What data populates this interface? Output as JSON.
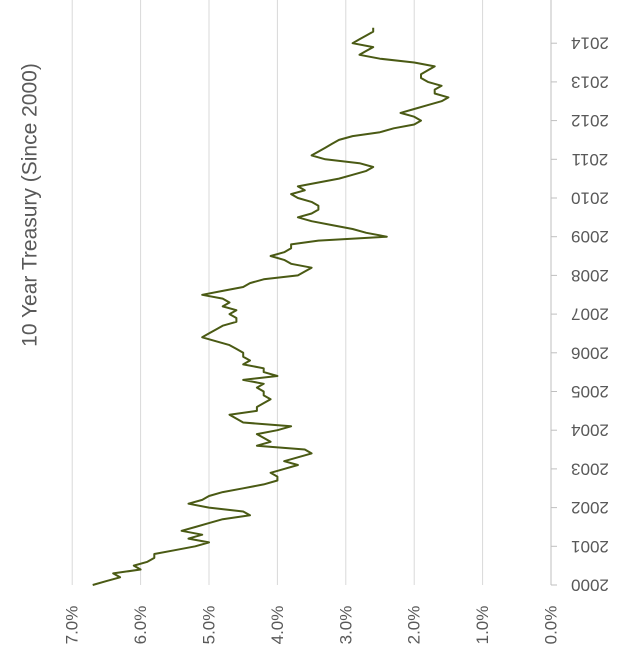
{
  "chart_data": {
    "type": "line",
    "orientation": "rotated-90-clockwise",
    "title": "10 Year Treasury (Since 2000)",
    "xlabel": "",
    "ylabel": "",
    "x_ticks": [
      "2000",
      "2001",
      "2002",
      "2003",
      "2004",
      "2005",
      "2006",
      "2007",
      "2008",
      "2009",
      "2010",
      "2011",
      "2012",
      "2013",
      "2014"
    ],
    "y_ticks": [
      "0.0%",
      "1.0%",
      "2.0%",
      "3.0%",
      "4.0%",
      "5.0%",
      "6.0%",
      "7.0%"
    ],
    "ylim": [
      0,
      7
    ],
    "xlim": [
      2000,
      2014.4
    ],
    "grid": true,
    "legend": "none",
    "series": [
      {
        "color": "#4a5a14",
        "x": [
          2000.0,
          2000.1,
          2000.2,
          2000.3,
          2000.4,
          2000.5,
          2000.6,
          2000.7,
          2000.8,
          2000.9,
          2001.0,
          2001.1,
          2001.2,
          2001.3,
          2001.4,
          2001.5,
          2001.6,
          2001.7,
          2001.8,
          2001.9,
          2002.0,
          2002.1,
          2002.2,
          2002.3,
          2002.4,
          2002.5,
          2002.6,
          2002.7,
          2002.8,
          2002.9,
          2003.0,
          2003.1,
          2003.2,
          2003.3,
          2003.4,
          2003.5,
          2003.6,
          2003.7,
          2003.8,
          2003.9,
          2004.0,
          2004.1,
          2004.2,
          2004.3,
          2004.4,
          2004.5,
          2004.6,
          2004.7,
          2004.8,
          2004.9,
          2005.0,
          2005.1,
          2005.2,
          2005.3,
          2005.4,
          2005.5,
          2005.6,
          2005.7,
          2005.8,
          2005.9,
          2006.0,
          2006.1,
          2006.2,
          2006.3,
          2006.4,
          2006.5,
          2006.6,
          2006.7,
          2006.8,
          2006.9,
          2007.0,
          2007.1,
          2007.2,
          2007.3,
          2007.4,
          2007.5,
          2007.6,
          2007.7,
          2007.8,
          2007.9,
          2008.0,
          2008.1,
          2008.2,
          2008.3,
          2008.4,
          2008.5,
          2008.6,
          2008.7,
          2008.8,
          2008.9,
          2009.0,
          2009.1,
          2009.2,
          2009.3,
          2009.4,
          2009.5,
          2009.6,
          2009.7,
          2009.8,
          2009.9,
          2010.0,
          2010.1,
          2010.2,
          2010.3,
          2010.4,
          2010.5,
          2010.6,
          2010.7,
          2010.8,
          2010.9,
          2011.0,
          2011.1,
          2011.2,
          2011.3,
          2011.4,
          2011.5,
          2011.6,
          2011.7,
          2011.8,
          2011.9,
          2012.0,
          2012.1,
          2012.2,
          2012.3,
          2012.4,
          2012.5,
          2012.6,
          2012.7,
          2012.8,
          2012.9,
          2013.0,
          2013.1,
          2013.2,
          2013.3,
          2013.4,
          2013.5,
          2013.6,
          2013.7,
          2013.8,
          2013.9,
          2014.0,
          2014.1,
          2014.2,
          2014.3,
          2014.4
        ],
        "values": [
          6.7,
          6.5,
          6.3,
          6.4,
          6.0,
          6.1,
          5.9,
          5.8,
          5.8,
          5.5,
          5.2,
          5.0,
          5.3,
          5.1,
          5.4,
          5.2,
          5.0,
          4.8,
          4.4,
          4.5,
          5.0,
          5.3,
          5.1,
          5.0,
          4.8,
          4.5,
          4.2,
          4.0,
          4.0,
          4.1,
          3.9,
          3.7,
          3.9,
          3.7,
          3.5,
          3.6,
          4.3,
          4.1,
          4.2,
          4.3,
          4.0,
          3.8,
          4.5,
          4.6,
          4.7,
          4.3,
          4.3,
          4.2,
          4.1,
          4.2,
          4.2,
          4.3,
          4.2,
          4.5,
          4.0,
          4.2,
          4.2,
          4.5,
          4.4,
          4.5,
          4.5,
          4.6,
          4.7,
          4.9,
          5.1,
          5.0,
          4.9,
          4.8,
          4.6,
          4.6,
          4.7,
          4.6,
          4.8,
          4.7,
          4.8,
          5.1,
          4.8,
          4.5,
          4.4,
          4.2,
          3.7,
          3.6,
          3.5,
          3.8,
          3.9,
          4.1,
          3.9,
          3.8,
          3.8,
          3.4,
          2.4,
          2.7,
          2.9,
          3.2,
          3.5,
          3.7,
          3.5,
          3.4,
          3.4,
          3.5,
          3.7,
          3.8,
          3.6,
          3.7,
          3.4,
          3.1,
          2.9,
          2.7,
          2.6,
          2.8,
          3.3,
          3.5,
          3.4,
          3.3,
          3.2,
          3.1,
          2.9,
          2.5,
          2.3,
          2.0,
          1.9,
          2.0,
          2.2,
          2.0,
          1.8,
          1.6,
          1.5,
          1.7,
          1.7,
          1.6,
          1.8,
          1.9,
          1.9,
          1.8,
          1.7,
          2.0,
          2.5,
          2.8,
          2.7,
          2.6,
          2.9,
          2.8,
          2.7,
          2.6,
          2.6
        ]
      }
    ]
  }
}
